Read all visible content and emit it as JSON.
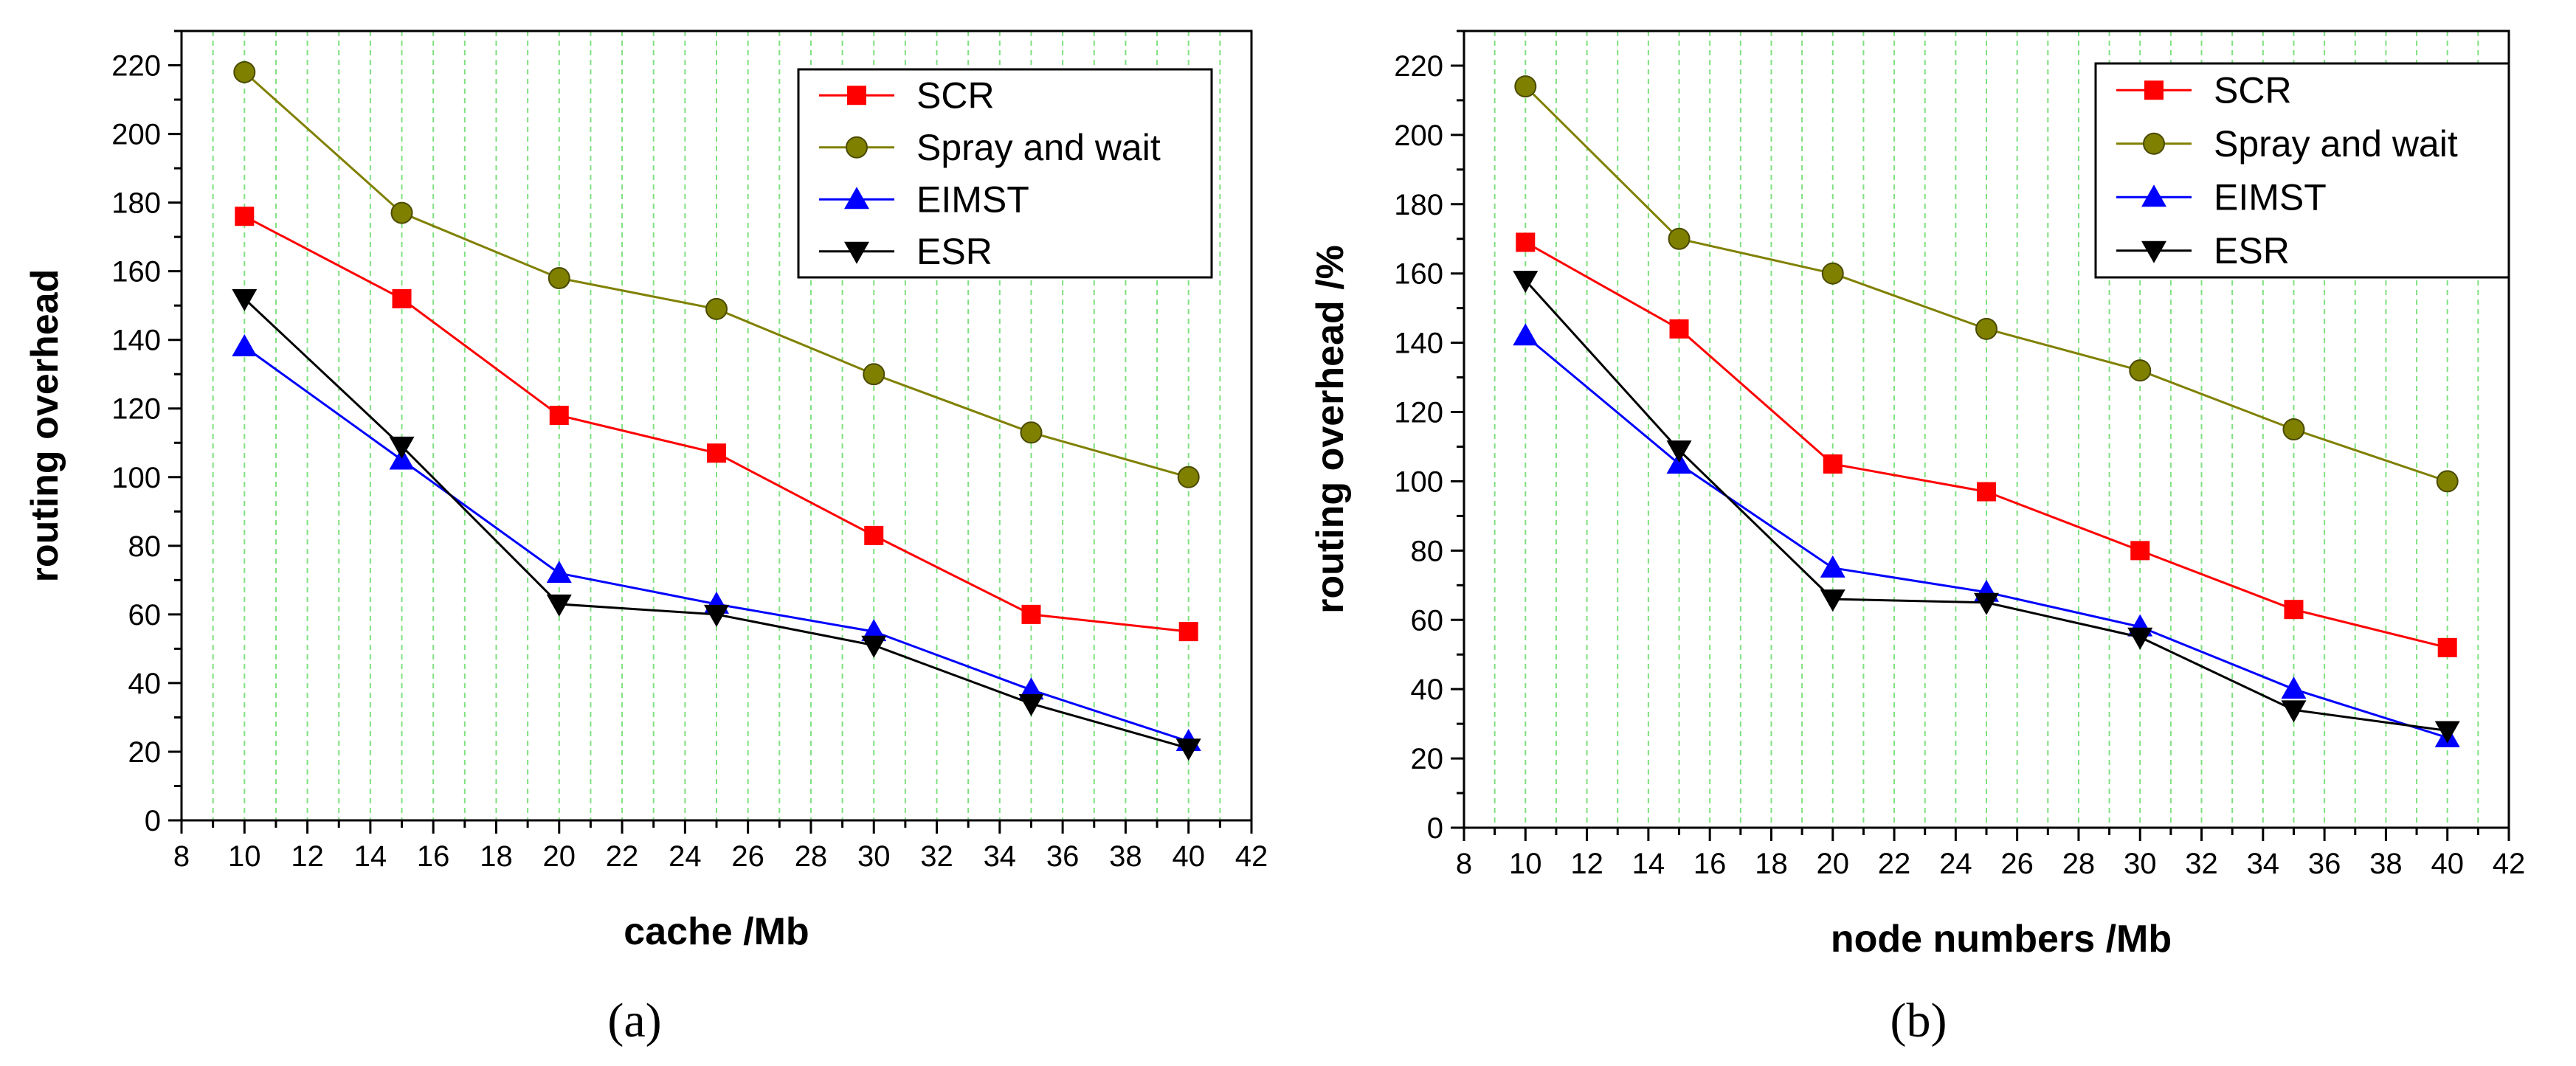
{
  "chart_data": [
    {
      "type": "line",
      "panel_label": "(a)",
      "title": "",
      "xlabel": "cache /Mb",
      "ylabel": "routing overhead",
      "xlim": [
        8,
        42
      ],
      "ylim": [
        0,
        230
      ],
      "x_ticks": [
        "8",
        "10",
        "12",
        "14",
        "16",
        "18",
        "20",
        "22",
        "24",
        "26",
        "28",
        "30",
        "32",
        "34",
        "36",
        "38",
        "40",
        "42"
      ],
      "y_ticks": [
        "0",
        "20",
        "40",
        "60",
        "80",
        "100",
        "120",
        "140",
        "160",
        "180",
        "200",
        "220"
      ],
      "grid": "vertical dashed green lines every 1 unit",
      "legend_position": "top-right",
      "x": [
        10,
        15,
        20,
        25,
        30,
        35,
        40
      ],
      "series": [
        {
          "name": "SCR",
          "color": "#ff0000",
          "marker": "square",
          "values": [
            176,
            152,
            118,
            107,
            83,
            60,
            55
          ]
        },
        {
          "name": "Spray and wait",
          "color": "#808000",
          "marker": "circle",
          "values": [
            218,
            177,
            158,
            149,
            130,
            113,
            100
          ]
        },
        {
          "name": "EIMST",
          "color": "#0000ff",
          "marker": "triangle-up",
          "values": [
            138,
            105,
            72,
            63,
            55,
            38,
            23
          ]
        },
        {
          "name": "ESR",
          "color": "#000000",
          "marker": "triangle-down",
          "values": [
            152,
            109,
            63,
            60,
            51,
            34,
            21
          ]
        }
      ]
    },
    {
      "type": "line",
      "panel_label": "(b)",
      "title": "",
      "xlabel": "node numbers /Mb",
      "ylabel": "routing overhead /%",
      "xlim": [
        8,
        42
      ],
      "ylim": [
        0,
        230
      ],
      "x_ticks": [
        "8",
        "10",
        "12",
        "14",
        "16",
        "18",
        "20",
        "22",
        "24",
        "26",
        "28",
        "30",
        "32",
        "34",
        "36",
        "38",
        "40",
        "42"
      ],
      "y_ticks": [
        "0",
        "20",
        "40",
        "60",
        "80",
        "100",
        "120",
        "140",
        "160",
        "180",
        "200",
        "220"
      ],
      "grid": "vertical dashed green lines every 1 unit",
      "legend_position": "top-right",
      "x": [
        10,
        15,
        20,
        25,
        30,
        35,
        40
      ],
      "series": [
        {
          "name": "SCR",
          "color": "#ff0000",
          "marker": "square",
          "values": [
            169,
            144,
            105,
            97,
            80,
            63,
            52
          ]
        },
        {
          "name": "Spray and wait",
          "color": "#808000",
          "marker": "circle",
          "values": [
            214,
            170,
            160,
            144,
            132,
            115,
            100
          ]
        },
        {
          "name": "EIMST",
          "color": "#0000ff",
          "marker": "triangle-up",
          "values": [
            142,
            105,
            75,
            68,
            58,
            40,
            26
          ]
        },
        {
          "name": "ESR",
          "color": "#000000",
          "marker": "triangle-down",
          "values": [
            158,
            109,
            66,
            65,
            55,
            34,
            28
          ]
        }
      ]
    }
  ]
}
